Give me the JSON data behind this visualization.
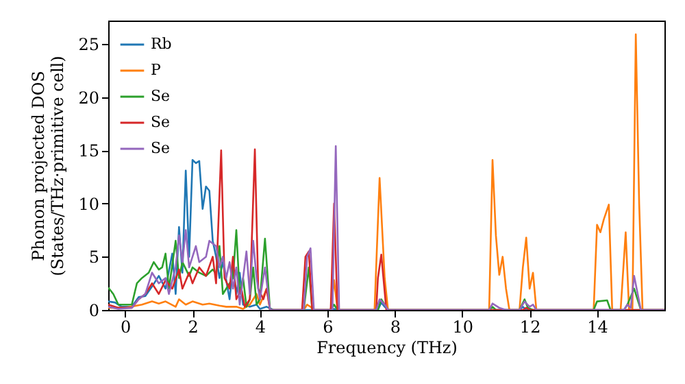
{
  "chart_data": {
    "type": "line",
    "xlabel": "Frequency (THz)",
    "ylabel": "Phonon projected DOS\n(States/THz·primitive cell)",
    "xlim": [
      -0.5,
      16
    ],
    "ylim": [
      0,
      27.2
    ],
    "xticks": [
      0,
      2,
      4,
      6,
      8,
      10,
      12,
      14
    ],
    "yticks": [
      0,
      5,
      10,
      15,
      20,
      25
    ],
    "grid": false,
    "legend": "top left",
    "series": [
      {
        "name": "Rb",
        "color": "#1f77b4",
        "x": [
          -0.5,
          -0.3,
          -0.1,
          0.2,
          0.4,
          0.6,
          0.8,
          1.0,
          1.2,
          1.4,
          1.5,
          1.6,
          1.7,
          1.8,
          1.9,
          2.0,
          2.1,
          2.2,
          2.3,
          2.4,
          2.5,
          2.6,
          2.7,
          2.8,
          2.9,
          3.0,
          3.1,
          3.2,
          3.3,
          3.4,
          3.5,
          3.7,
          3.9,
          4.0,
          4.2,
          4.4,
          6.1,
          6.2,
          6.3,
          7.5,
          7.6,
          7.7,
          7.8,
          11.7,
          11.8,
          11.9,
          16
        ],
        "values": [
          0.8,
          0.7,
          0.3,
          0.3,
          1.2,
          1.3,
          2.2,
          3.2,
          2,
          5.3,
          1.5,
          7.8,
          3.5,
          13.1,
          5,
          14.1,
          13.8,
          14,
          9.5,
          11.6,
          11.2,
          6.5,
          5,
          3,
          4.5,
          2.8,
          1,
          4,
          1.5,
          3.5,
          0.5,
          0.3,
          0.5,
          0.1,
          0.3,
          0,
          0,
          0.1,
          0,
          0,
          0.7,
          0.3,
          0,
          0,
          0.3,
          0,
          0
        ]
      },
      {
        "name": "P",
        "color": "#ff7f0e",
        "x": [
          -0.5,
          0,
          0.5,
          0.8,
          1.0,
          1.2,
          1.5,
          1.6,
          1.8,
          2.0,
          2.3,
          2.5,
          2.8,
          3.0,
          3.3,
          3.5,
          3.7,
          3.9,
          4.0,
          4.2,
          4.3,
          5.3,
          5.4,
          5.5,
          5.6,
          6.1,
          6.2,
          6.3,
          7.4,
          7.55,
          7.7,
          7.8,
          10.8,
          10.9,
          11.0,
          11.1,
          11.2,
          11.3,
          11.4,
          11.7,
          11.8,
          11.9,
          12.0,
          12.1,
          12.2,
          13.9,
          14.0,
          14.1,
          14.2,
          14.35,
          14.45,
          14.7,
          14.85,
          14.95,
          15.05,
          15.15,
          15.25,
          15.35,
          16
        ],
        "values": [
          0.2,
          0.2,
          0.5,
          0.8,
          0.6,
          0.8,
          0.3,
          1.0,
          0.5,
          0.8,
          0.5,
          0.6,
          0.4,
          0.3,
          0.3,
          0.1,
          0.5,
          1.5,
          0.5,
          2.0,
          0,
          0,
          0.5,
          0.3,
          0,
          0,
          2.8,
          0,
          0,
          12.4,
          3,
          0,
          0,
          14.1,
          7,
          3.3,
          5,
          2,
          0,
          0,
          4,
          6.8,
          2,
          3.5,
          0,
          0,
          8,
          7.3,
          8.5,
          9.9,
          0,
          0,
          7.3,
          0,
          0,
          25.9,
          10,
          0,
          0
        ]
      },
      {
        "name": "Se",
        "color": "#2ca02c",
        "x": [
          -0.5,
          -0.35,
          -0.2,
          0.2,
          0.35,
          0.5,
          0.7,
          0.85,
          1.0,
          1.1,
          1.2,
          1.3,
          1.5,
          1.6,
          1.7,
          1.9,
          2.0,
          2.2,
          2.4,
          2.6,
          2.7,
          2.8,
          2.9,
          3.0,
          3.2,
          3.3,
          3.4,
          3.5,
          3.6,
          3.7,
          3.8,
          3.9,
          4.0,
          4.15,
          4.3,
          5.3,
          5.45,
          5.55,
          6.1,
          6.2,
          6.3,
          7.5,
          7.6,
          7.7,
          7.8,
          10.8,
          10.9,
          11.0,
          11.7,
          11.85,
          11.95,
          12.1,
          13.9,
          14.0,
          14.3,
          14.4,
          14.8,
          14.9,
          15.1,
          15.3,
          16
        ],
        "values": [
          2.1,
          1.5,
          0.5,
          0.5,
          2.5,
          3,
          3.5,
          4.5,
          3.8,
          4,
          5.3,
          2,
          6.5,
          3,
          4.5,
          3.2,
          4,
          3.5,
          3.2,
          3.8,
          3.4,
          6,
          1.5,
          2,
          3,
          7.5,
          1.5,
          3,
          0.3,
          1,
          4,
          0.5,
          1,
          6.7,
          0,
          0,
          4,
          0,
          0,
          0.5,
          0,
          0,
          1,
          0.5,
          0,
          0,
          0.3,
          0,
          0,
          1,
          0.2,
          0,
          0,
          0.8,
          0.9,
          0,
          0,
          0.5,
          2,
          0,
          0
        ]
      },
      {
        "name": "Se",
        "color": "#d62728",
        "x": [
          -0.5,
          -0.2,
          0.2,
          0.4,
          0.6,
          0.8,
          1.0,
          1.2,
          1.4,
          1.6,
          1.7,
          1.9,
          2.0,
          2.2,
          2.4,
          2.6,
          2.7,
          2.85,
          2.95,
          3.1,
          3.2,
          3.3,
          3.45,
          3.55,
          3.7,
          3.85,
          3.95,
          4.1,
          4.2,
          4.3,
          5.25,
          5.35,
          5.45,
          5.55,
          6.1,
          6.2,
          6.3,
          7.45,
          7.5,
          7.6,
          7.75,
          11.8,
          11.9,
          12,
          16
        ],
        "values": [
          0.5,
          0.2,
          0.2,
          1,
          1.5,
          2.5,
          1.5,
          2.8,
          2,
          3.8,
          2,
          3.5,
          2.5,
          4,
          3.2,
          5,
          2.5,
          15,
          3,
          2,
          5,
          1,
          2,
          0.3,
          1,
          15.1,
          2,
          1,
          2,
          0,
          0,
          5,
          5.5,
          0,
          0,
          10,
          0,
          0,
          3,
          5.2,
          0,
          0,
          0.2,
          0,
          0
        ]
      },
      {
        "name": "Se",
        "color": "#9467bd",
        "x": [
          -0.5,
          -0.2,
          0.2,
          0.4,
          0.6,
          0.8,
          1.0,
          1.2,
          1.3,
          1.5,
          1.6,
          1.7,
          1.8,
          1.9,
          2.1,
          2.2,
          2.4,
          2.5,
          2.7,
          2.8,
          2.9,
          3.0,
          3.1,
          3.2,
          3.3,
          3.4,
          3.6,
          3.7,
          3.8,
          3.9,
          4.0,
          4.15,
          4.3,
          5.3,
          5.4,
          5.5,
          5.6,
          6.15,
          6.25,
          6.35,
          7.45,
          7.55,
          7.7,
          7.8,
          10.8,
          10.9,
          11.1,
          11.3,
          11.7,
          11.85,
          12.0,
          12.1,
          12.2,
          14.8,
          14.9,
          15.0,
          15.1,
          15.3,
          16
        ],
        "values": [
          0.3,
          0.1,
          0.2,
          1,
          1.5,
          3.5,
          2.5,
          3,
          1.5,
          4,
          7,
          4.5,
          7.5,
          4,
          6,
          4.5,
          5,
          6.5,
          6,
          4,
          5,
          3,
          4.5,
          2,
          4,
          0.5,
          5.5,
          1.5,
          6.5,
          3,
          1,
          4,
          0,
          0,
          5,
          5.8,
          0,
          0,
          15.4,
          0,
          0,
          1,
          0.5,
          0,
          0,
          0.6,
          0.2,
          0,
          0,
          0.8,
          0.3,
          0.5,
          0,
          0,
          0.5,
          0.2,
          3.2,
          0,
          0
        ]
      }
    ]
  }
}
